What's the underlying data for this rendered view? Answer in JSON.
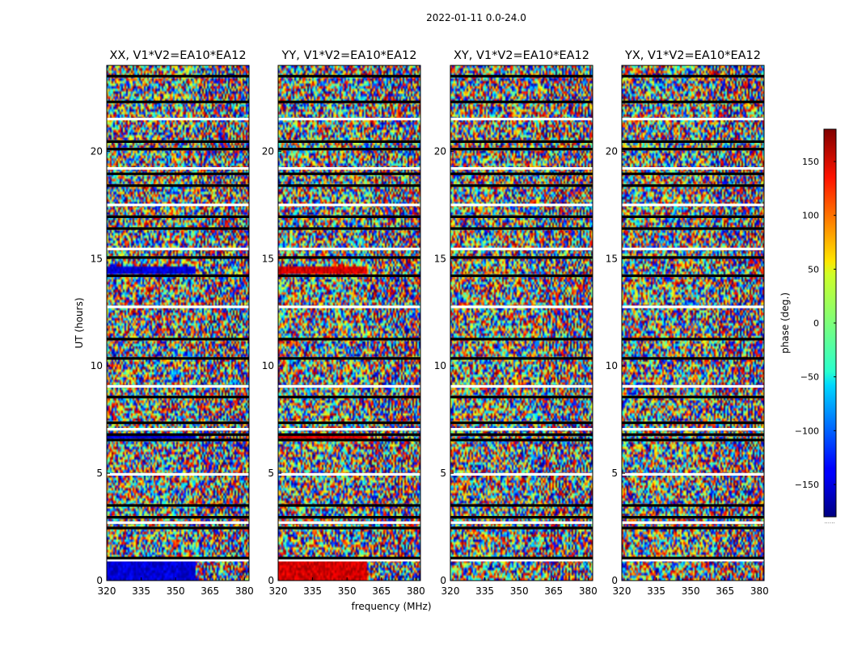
{
  "figure": {
    "suptitle": "2022-01-11 0.0-24.0",
    "colorbar_label": "phase (deg.)",
    "colorbar_footnote": "......"
  },
  "chart_data": {
    "type": "heatmap",
    "title": "2022-01-11 0.0-24.0",
    "xlabel": "frequency (MHz)",
    "ylabel": "UT (hours)",
    "xlim": [
      320,
      382
    ],
    "ylim": [
      0,
      24
    ],
    "x_ticks": [
      320,
      335,
      350,
      365,
      380
    ],
    "y_ticks": [
      0,
      5,
      10,
      15,
      20
    ],
    "colormap": "jet",
    "color_range": [
      -180,
      180
    ],
    "colorbar_ticks": [
      150,
      100,
      50,
      0,
      -50,
      -100,
      -150
    ],
    "colorbar_tick_labels": [
      "150",
      "100",
      "50",
      "0",
      "−50",
      "−100",
      "−150"
    ],
    "panels": [
      {
        "title": "XX, V1*V2=EA10*EA12",
        "dominant_phase_low_band": -150
      },
      {
        "title": "YY, V1*V2=EA10*EA12",
        "dominant_phase_low_band": 150
      },
      {
        "title": "XY, V1*V2=EA10*EA12",
        "dominant_phase_low_band": null
      },
      {
        "title": "YX, V1*V2=EA10*EA12",
        "dominant_phase_low_band": null
      }
    ],
    "flagged_gaps_ut": [
      0.95,
      1.05,
      2.45,
      2.7,
      2.95,
      3.5,
      4.95,
      6.55,
      6.8,
      7.05,
      7.35,
      8.55,
      9.05,
      10.35,
      11.25,
      12.75,
      14.2,
      15.05,
      15.45,
      16.4,
      16.95,
      17.5,
      18.4,
      18.95,
      19.2,
      20.1,
      20.45,
      21.5,
      22.3,
      23.5
    ]
  }
}
